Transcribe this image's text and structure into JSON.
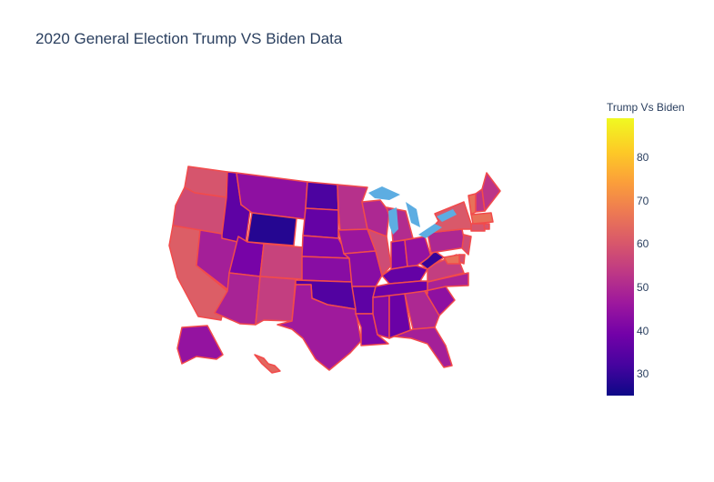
{
  "title": "2020 General Election Trump VS Biden Data",
  "colors": {
    "state_border": "#f24b4b",
    "lakes": "#5dade2",
    "colorscale": [
      "#0d0887",
      "#46039f",
      "#7201a8",
      "#9c179e",
      "#bd3786",
      "#d8576b",
      "#ed7953",
      "#fb9f3a",
      "#fdca26",
      "#f0f921"
    ]
  },
  "colorbar": {
    "title": "Trump Vs Biden",
    "min": 25,
    "max": 89,
    "ticks": [
      "30",
      "40",
      "50",
      "60",
      "70",
      "80"
    ]
  },
  "chart_data": {
    "type": "choropleth",
    "scope": "usa",
    "colorbar_title": "Trump Vs Biden",
    "color_range": [
      25,
      89
    ],
    "note_values_estimated_from_colors": true,
    "states": [
      {
        "state": "WA",
        "value": 60
      },
      {
        "state": "OR",
        "value": 58
      },
      {
        "state": "CA",
        "value": 62
      },
      {
        "state": "NV",
        "value": 48
      },
      {
        "state": "ID",
        "value": 36
      },
      {
        "state": "MT",
        "value": 44
      },
      {
        "state": "WY",
        "value": 28
      },
      {
        "state": "UT",
        "value": 40
      },
      {
        "state": "AZ",
        "value": 49
      },
      {
        "state": "CO",
        "value": 56
      },
      {
        "state": "NM",
        "value": 55
      },
      {
        "state": "ND",
        "value": 33
      },
      {
        "state": "SD",
        "value": 37
      },
      {
        "state": "NE",
        "value": 41
      },
      {
        "state": "KS",
        "value": 43
      },
      {
        "state": "OK",
        "value": 34
      },
      {
        "state": "TX",
        "value": 47
      },
      {
        "state": "MN",
        "value": 52
      },
      {
        "state": "IA",
        "value": 46
      },
      {
        "state": "MO",
        "value": 43
      },
      {
        "state": "AR",
        "value": 36
      },
      {
        "state": "LA",
        "value": 41
      },
      {
        "state": "WI",
        "value": 50
      },
      {
        "state": "IL",
        "value": 58
      },
      {
        "state": "MI",
        "value": 51
      },
      {
        "state": "IN",
        "value": 41
      },
      {
        "state": "OH",
        "value": 45
      },
      {
        "state": "KY",
        "value": 37
      },
      {
        "state": "TN",
        "value": 38
      },
      {
        "state": "MS",
        "value": 42
      },
      {
        "state": "AL",
        "value": 38
      },
      {
        "state": "GA",
        "value": 50
      },
      {
        "state": "FL",
        "value": 48
      },
      {
        "state": "SC",
        "value": 44
      },
      {
        "state": "NC",
        "value": 49
      },
      {
        "state": "VA",
        "value": 55
      },
      {
        "state": "WV",
        "value": 30
      },
      {
        "state": "PA",
        "value": 50
      },
      {
        "state": "NY",
        "value": 61
      },
      {
        "state": "VT",
        "value": 66
      },
      {
        "state": "NH",
        "value": 53
      },
      {
        "state": "ME",
        "value": 53
      },
      {
        "state": "MA",
        "value": 66
      },
      {
        "state": "RI",
        "value": 60
      },
      {
        "state": "CT",
        "value": 60
      },
      {
        "state": "NJ",
        "value": 58
      },
      {
        "state": "DE",
        "value": 59
      },
      {
        "state": "MD",
        "value": 66
      },
      {
        "state": "AK",
        "value": 45
      },
      {
        "state": "HI",
        "value": 64
      }
    ]
  }
}
